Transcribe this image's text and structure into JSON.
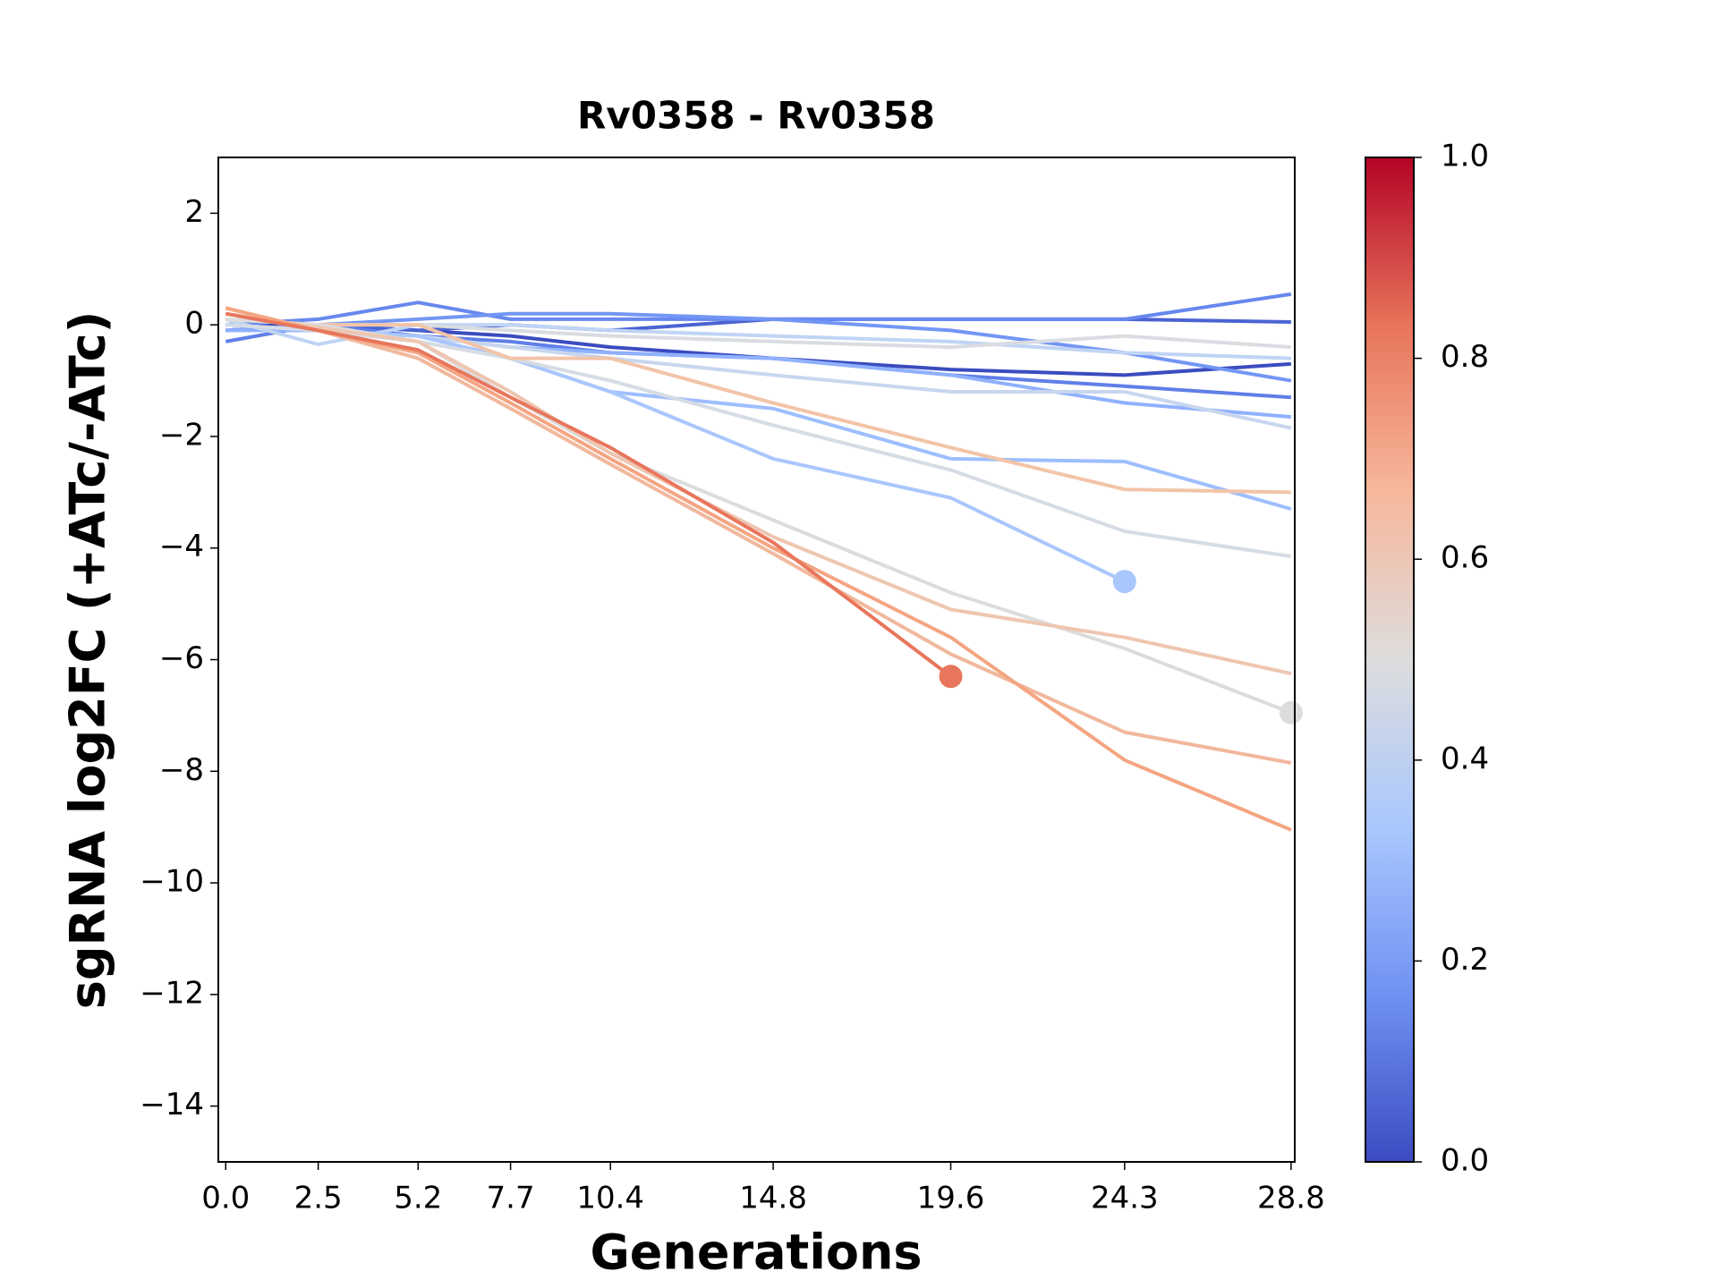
{
  "chart_data": {
    "type": "line",
    "title": "Rv0358 - Rv0358",
    "x_label": "Generations",
    "y_label": "sgRNA log2FC (+ATc/-ATc)",
    "x": [
      0,
      2.5,
      5.2,
      7.7,
      10.4,
      14.8,
      19.6,
      24.3,
      28.8
    ],
    "xlim": [
      -0.2,
      28.9
    ],
    "xticks": [
      {
        "value": 0,
        "label": "0.0"
      },
      2.5,
      5.2,
      7.7,
      10.4,
      14.8,
      19.6,
      24.3,
      28.8
    ],
    "ylim": [
      -15,
      3
    ],
    "yticks": [
      {
        "value": -14,
        "label": "−14"
      },
      {
        "value": -12,
        "label": "−12"
      },
      {
        "value": -10,
        "label": "−10"
      },
      {
        "value": -8,
        "label": "−8"
      },
      {
        "value": -6,
        "label": "−6"
      },
      {
        "value": -4,
        "label": "−4"
      },
      {
        "value": -2,
        "label": "−2"
      },
      0,
      2
    ],
    "series": [
      {
        "color": "#3b4cc0",
        "values": [
          0,
          0,
          -0.1,
          -0.2,
          -0.4,
          -0.6,
          -0.8,
          -0.9,
          -0.7
        ]
      },
      {
        "color": "#4a63d3",
        "values": [
          -0.1,
          0,
          -0.1,
          0,
          -0.1,
          0.1,
          0.1,
          0.1,
          0.05
        ]
      },
      {
        "color": "#6788ee",
        "values": [
          0,
          0.1,
          0.4,
          0.1,
          0.1,
          0.1,
          0.1,
          0.1,
          0.55
        ]
      },
      {
        "color": "#5f7fe8",
        "values": [
          -0.3,
          0,
          -0.2,
          -0.3,
          -0.5,
          -0.6,
          -0.9,
          -1.1,
          -1.3
        ]
      },
      {
        "color": "#7396f5",
        "values": [
          -0.1,
          0,
          0.1,
          0.2,
          0.2,
          0.1,
          -0.1,
          -0.5,
          -1.0
        ]
      },
      {
        "color": "#8fb1fe",
        "values": [
          -0.1,
          -0.1,
          -0.2,
          -0.4,
          -0.5,
          -0.6,
          -0.9,
          -1.4,
          -1.65
        ]
      },
      {
        "color": "#c0d4f5",
        "values": [
          0.1,
          -0.35,
          0,
          0,
          -0.1,
          -0.2,
          -0.3,
          -0.5,
          -0.6
        ]
      },
      {
        "color": "#d9dce1",
        "values": [
          0.1,
          0,
          0,
          -0.1,
          -0.2,
          -0.3,
          -0.4,
          -0.2,
          -0.4
        ]
      },
      {
        "color": "#c8d6ee",
        "values": [
          0,
          -0.1,
          -0.2,
          -0.4,
          -0.6,
          -0.9,
          -1.2,
          -1.2,
          -1.85
        ]
      },
      {
        "color": "#9ebeff",
        "values": [
          0,
          -0.1,
          -0.2,
          -0.6,
          -1.2,
          -1.5,
          -2.4,
          -2.45,
          -3.3
        ]
      },
      {
        "color": "#a9c6fd",
        "values": [
          0,
          -0.1,
          -0.2,
          -0.6,
          -1.2,
          -2.4,
          -3.1,
          -4.6,
          null
        ],
        "end_marker": true
      },
      {
        "color": "#d6dce4",
        "values": [
          0,
          -0.1,
          -0.3,
          -0.6,
          -1.0,
          -1.8,
          -2.6,
          -3.7,
          -4.15
        ]
      },
      {
        "color": "#f2c4a8",
        "values": [
          0.1,
          0,
          0,
          -0.6,
          -0.6,
          -1.4,
          -2.2,
          -2.95,
          -3.0
        ]
      },
      {
        "color": "#dcdcdc",
        "values": [
          0.1,
          0,
          -0.3,
          -1.3,
          -2.3,
          -3.5,
          -4.8,
          -5.8,
          -6.95
        ],
        "end_marker": true
      },
      {
        "color": "#eec6b0",
        "values": [
          0.2,
          -0.05,
          -0.3,
          -1.2,
          -2.3,
          -3.8,
          -5.1,
          -5.6,
          -6.25
        ]
      },
      {
        "color": "#f1b89d",
        "values": [
          0.3,
          -0.1,
          -0.6,
          -1.5,
          -2.5,
          -4.1,
          -5.9,
          -7.3,
          -7.85
        ]
      },
      {
        "color": "#f4a582",
        "values": [
          0.3,
          -0.1,
          -0.5,
          -1.4,
          -2.4,
          -4.0,
          -5.6,
          -7.8,
          -9.05
        ]
      },
      {
        "color": "#e8765c",
        "values": [
          0.2,
          -0.1,
          -0.45,
          -1.3,
          -2.2,
          -3.9,
          -6.3,
          null,
          null
        ],
        "end_marker": true
      }
    ],
    "colorbar": {
      "lim": [
        0,
        1
      ],
      "colors": [
        "#3b4cc0",
        "#6f92f3",
        "#aac7fd",
        "#dddddd",
        "#f7b89c",
        "#e7745b",
        "#b40426"
      ],
      "ticks": [
        {
          "value": 0,
          "label": "0.0"
        },
        {
          "value": 0.2,
          "label": "0.2"
        },
        {
          "value": 0.4,
          "label": "0.4"
        },
        {
          "value": 0.6,
          "label": "0.6"
        },
        {
          "value": 0.8,
          "label": "0.8"
        },
        {
          "value": 1,
          "label": "1.0"
        }
      ]
    }
  }
}
